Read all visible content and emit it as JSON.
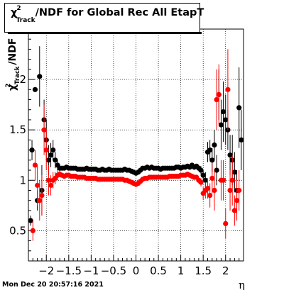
{
  "title": {
    "chi": "χ",
    "sup": "2",
    "sub": "Track",
    "rest": "/NDF for Global Rec All EtapT"
  },
  "timestamp": "Mon Dec 20 20:57:16 2021",
  "chart_data": {
    "type": "scatter",
    "xlabel": "η",
    "ylabel_parts": {
      "chi": "χ",
      "sup": "2",
      "sub": "Track",
      "rest": "/NDF"
    },
    "xlim": [
      -2.4,
      2.4
    ],
    "ylim": [
      0.2,
      2.5
    ],
    "x_ticks": [
      -2,
      -1.5,
      -1,
      -0.5,
      0,
      0.5,
      1,
      1.5,
      2
    ],
    "x_tick_labels": [
      "−2",
      "−1.5",
      "−1",
      "−0.5",
      "0",
      "0.5",
      "1",
      "1.5",
      "2"
    ],
    "y_ticks": [
      0.5,
      1,
      1.5,
      2
    ],
    "y_tick_labels": [
      "0.5",
      "1",
      "1.5",
      "2"
    ],
    "grid": true,
    "colors": {
      "black_series": "#000000",
      "red_series": "#ff0000",
      "axes": "#000000"
    },
    "series": [
      {
        "color": "#000000",
        "points": [
          [
            -2.35,
            0.6,
            0.05
          ],
          [
            -2.32,
            1.3,
            0.1
          ],
          [
            -2.25,
            1.9,
            0.0
          ],
          [
            -2.2,
            0.8,
            0.1
          ],
          [
            -2.15,
            2.03,
            0.3
          ],
          [
            -2.1,
            0.9,
            0.25
          ],
          [
            -2.05,
            1.6,
            0.2
          ],
          [
            -2.0,
            1.4,
            0.2
          ],
          [
            -1.95,
            1.2,
            0.15
          ],
          [
            -1.9,
            1.25,
            0.12
          ],
          [
            -1.85,
            1.3,
            0.1
          ],
          [
            -1.8,
            1.2,
            0.08
          ],
          [
            -1.75,
            1.15,
            0.05
          ],
          [
            -1.7,
            1.12,
            0.03
          ],
          [
            -1.65,
            1.12,
            0.02
          ],
          [
            -1.6,
            1.12,
            0.02
          ],
          [
            -1.55,
            1.13,
            0.02
          ],
          [
            -1.5,
            1.12,
            0.02
          ],
          [
            -1.45,
            1.12,
            0.02
          ],
          [
            -1.4,
            1.12,
            0.02
          ],
          [
            -1.35,
            1.12,
            0.02
          ],
          [
            -1.3,
            1.11,
            0.02
          ],
          [
            -1.25,
            1.11,
            0.02
          ],
          [
            -1.2,
            1.11,
            0.02
          ],
          [
            -1.15,
            1.11,
            0.02
          ],
          [
            -1.1,
            1.12,
            0.02
          ],
          [
            -1.05,
            1.11,
            0.02
          ],
          [
            -1.0,
            1.11,
            0.02
          ],
          [
            -0.95,
            1.11,
            0.02
          ],
          [
            -0.9,
            1.11,
            0.02
          ],
          [
            -0.85,
            1.1,
            0.02
          ],
          [
            -0.8,
            1.1,
            0.02
          ],
          [
            -0.75,
            1.11,
            0.02
          ],
          [
            -0.7,
            1.1,
            0.02
          ],
          [
            -0.65,
            1.1,
            0.02
          ],
          [
            -0.6,
            1.11,
            0.02
          ],
          [
            -0.55,
            1.1,
            0.02
          ],
          [
            -0.5,
            1.1,
            0.02
          ],
          [
            -0.45,
            1.1,
            0.02
          ],
          [
            -0.4,
            1.1,
            0.02
          ],
          [
            -0.35,
            1.1,
            0.02
          ],
          [
            -0.3,
            1.1,
            0.02
          ],
          [
            -0.25,
            1.11,
            0.02
          ],
          [
            -0.2,
            1.1,
            0.02
          ],
          [
            -0.15,
            1.1,
            0.02
          ],
          [
            -0.1,
            1.09,
            0.02
          ],
          [
            -0.05,
            1.08,
            0.02
          ],
          [
            0.0,
            1.07,
            0.02
          ],
          [
            0.05,
            1.08,
            0.02
          ],
          [
            0.1,
            1.1,
            0.02
          ],
          [
            0.15,
            1.12,
            0.02
          ],
          [
            0.2,
            1.12,
            0.02
          ],
          [
            0.25,
            1.13,
            0.02
          ],
          [
            0.3,
            1.12,
            0.02
          ],
          [
            0.35,
            1.13,
            0.02
          ],
          [
            0.4,
            1.12,
            0.02
          ],
          [
            0.45,
            1.12,
            0.02
          ],
          [
            0.5,
            1.12,
            0.02
          ],
          [
            0.55,
            1.11,
            0.02
          ],
          [
            0.6,
            1.12,
            0.02
          ],
          [
            0.65,
            1.12,
            0.02
          ],
          [
            0.7,
            1.12,
            0.02
          ],
          [
            0.75,
            1.12,
            0.02
          ],
          [
            0.8,
            1.12,
            0.02
          ],
          [
            0.85,
            1.12,
            0.02
          ],
          [
            0.9,
            1.13,
            0.02
          ],
          [
            0.95,
            1.13,
            0.02
          ],
          [
            1.0,
            1.12,
            0.02
          ],
          [
            1.05,
            1.13,
            0.02
          ],
          [
            1.1,
            1.13,
            0.02
          ],
          [
            1.15,
            1.14,
            0.02
          ],
          [
            1.2,
            1.13,
            0.02
          ],
          [
            1.25,
            1.15,
            0.02
          ],
          [
            1.3,
            1.13,
            0.02
          ],
          [
            1.35,
            1.14,
            0.02
          ],
          [
            1.4,
            1.12,
            0.03
          ],
          [
            1.45,
            1.1,
            0.04
          ],
          [
            1.5,
            1.05,
            0.05
          ],
          [
            1.55,
            1.0,
            0.08
          ],
          [
            1.6,
            1.28,
            0.1
          ],
          [
            1.65,
            1.3,
            0.1
          ],
          [
            1.7,
            1.2,
            0.12
          ],
          [
            1.75,
            1.35,
            0.15
          ],
          [
            1.8,
            1.1,
            0.15
          ],
          [
            1.85,
            1.85,
            0.25
          ],
          [
            1.9,
            1.55,
            0.25
          ],
          [
            1.95,
            1.68,
            0.3
          ],
          [
            2.0,
            1.6,
            0.25
          ],
          [
            2.05,
            1.5,
            0.2
          ],
          [
            2.1,
            1.25,
            0.2
          ],
          [
            2.15,
            1.2,
            0.25
          ],
          [
            2.2,
            1.08,
            0.2
          ],
          [
            2.25,
            0.9,
            0.2
          ],
          [
            2.3,
            1.72,
            0.4
          ],
          [
            2.35,
            1.4,
            0.3
          ]
        ]
      },
      {
        "color": "#ff0000",
        "points": [
          [
            -2.3,
            0.5,
            0.1
          ],
          [
            -2.25,
            1.15,
            0.15
          ],
          [
            -2.2,
            0.95,
            0.2
          ],
          [
            -2.15,
            0.8,
            0.2
          ],
          [
            -2.1,
            0.85,
            0.2
          ],
          [
            -2.05,
            1.5,
            0.25
          ],
          [
            -2.0,
            1.3,
            0.2
          ],
          [
            -1.95,
            1.0,
            0.15
          ],
          [
            -1.9,
            0.95,
            0.1
          ],
          [
            -1.85,
            1.0,
            0.08
          ],
          [
            -1.8,
            1.02,
            0.06
          ],
          [
            -1.75,
            1.05,
            0.05
          ],
          [
            -1.7,
            1.06,
            0.03
          ],
          [
            -1.65,
            1.05,
            0.02
          ],
          [
            -1.6,
            1.04,
            0.02
          ],
          [
            -1.55,
            1.05,
            0.02
          ],
          [
            -1.5,
            1.05,
            0.02
          ],
          [
            -1.45,
            1.04,
            0.02
          ],
          [
            -1.4,
            1.04,
            0.02
          ],
          [
            -1.35,
            1.04,
            0.02
          ],
          [
            -1.3,
            1.03,
            0.02
          ],
          [
            -1.25,
            1.03,
            0.02
          ],
          [
            -1.2,
            1.03,
            0.02
          ],
          [
            -1.15,
            1.03,
            0.02
          ],
          [
            -1.1,
            1.02,
            0.02
          ],
          [
            -1.05,
            1.02,
            0.02
          ],
          [
            -1.0,
            1.02,
            0.02
          ],
          [
            -0.95,
            1.02,
            0.02
          ],
          [
            -0.9,
            1.02,
            0.02
          ],
          [
            -0.85,
            1.01,
            0.02
          ],
          [
            -0.8,
            1.01,
            0.02
          ],
          [
            -0.75,
            1.01,
            0.02
          ],
          [
            -0.7,
            1.01,
            0.02
          ],
          [
            -0.65,
            1.01,
            0.02
          ],
          [
            -0.6,
            1.01,
            0.02
          ],
          [
            -0.55,
            1.01,
            0.02
          ],
          [
            -0.5,
            1.01,
            0.02
          ],
          [
            -0.45,
            1.01,
            0.02
          ],
          [
            -0.4,
            1.01,
            0.02
          ],
          [
            -0.35,
            1.01,
            0.02
          ],
          [
            -0.3,
            1.01,
            0.02
          ],
          [
            -0.25,
            1.0,
            0.02
          ],
          [
            -0.2,
            1.0,
            0.02
          ],
          [
            -0.15,
            0.99,
            0.02
          ],
          [
            -0.1,
            0.98,
            0.02
          ],
          [
            -0.05,
            0.97,
            0.02
          ],
          [
            0.0,
            0.96,
            0.02
          ],
          [
            0.05,
            0.97,
            0.02
          ],
          [
            0.1,
            0.99,
            0.02
          ],
          [
            0.15,
            1.01,
            0.02
          ],
          [
            0.2,
            1.02,
            0.02
          ],
          [
            0.25,
            1.02,
            0.02
          ],
          [
            0.3,
            1.03,
            0.02
          ],
          [
            0.35,
            1.03,
            0.02
          ],
          [
            0.4,
            1.03,
            0.02
          ],
          [
            0.45,
            1.03,
            0.02
          ],
          [
            0.5,
            1.03,
            0.02
          ],
          [
            0.55,
            1.03,
            0.02
          ],
          [
            0.6,
            1.03,
            0.02
          ],
          [
            0.65,
            1.03,
            0.02
          ],
          [
            0.7,
            1.03,
            0.02
          ],
          [
            0.75,
            1.04,
            0.02
          ],
          [
            0.8,
            1.04,
            0.02
          ],
          [
            0.85,
            1.04,
            0.02
          ],
          [
            0.9,
            1.04,
            0.02
          ],
          [
            0.95,
            1.04,
            0.02
          ],
          [
            1.0,
            1.05,
            0.02
          ],
          [
            1.05,
            1.05,
            0.02
          ],
          [
            1.1,
            1.05,
            0.02
          ],
          [
            1.15,
            1.06,
            0.02
          ],
          [
            1.2,
            1.05,
            0.02
          ],
          [
            1.25,
            1.04,
            0.02
          ],
          [
            1.3,
            1.03,
            0.02
          ],
          [
            1.35,
            1.03,
            0.02
          ],
          [
            1.4,
            1.0,
            0.03
          ],
          [
            1.45,
            0.98,
            0.04
          ],
          [
            1.5,
            0.87,
            0.06
          ],
          [
            1.55,
            0.9,
            0.08
          ],
          [
            1.6,
            0.92,
            0.1
          ],
          [
            1.65,
            0.85,
            0.12
          ],
          [
            1.7,
            1.02,
            0.15
          ],
          [
            1.75,
            0.9,
            0.2
          ],
          [
            1.8,
            1.8,
            0.3
          ],
          [
            1.85,
            1.85,
            0.3
          ],
          [
            1.9,
            1.0,
            0.2
          ],
          [
            1.95,
            1.0,
            0.2
          ],
          [
            2.0,
            0.57,
            0.15
          ],
          [
            2.05,
            1.9,
            0.4
          ],
          [
            2.1,
            0.9,
            0.2
          ],
          [
            2.15,
            1.0,
            0.25
          ],
          [
            2.2,
            0.7,
            0.15
          ],
          [
            2.25,
            0.8,
            0.2
          ],
          [
            2.3,
            0.9,
            0.2
          ]
        ]
      }
    ]
  }
}
